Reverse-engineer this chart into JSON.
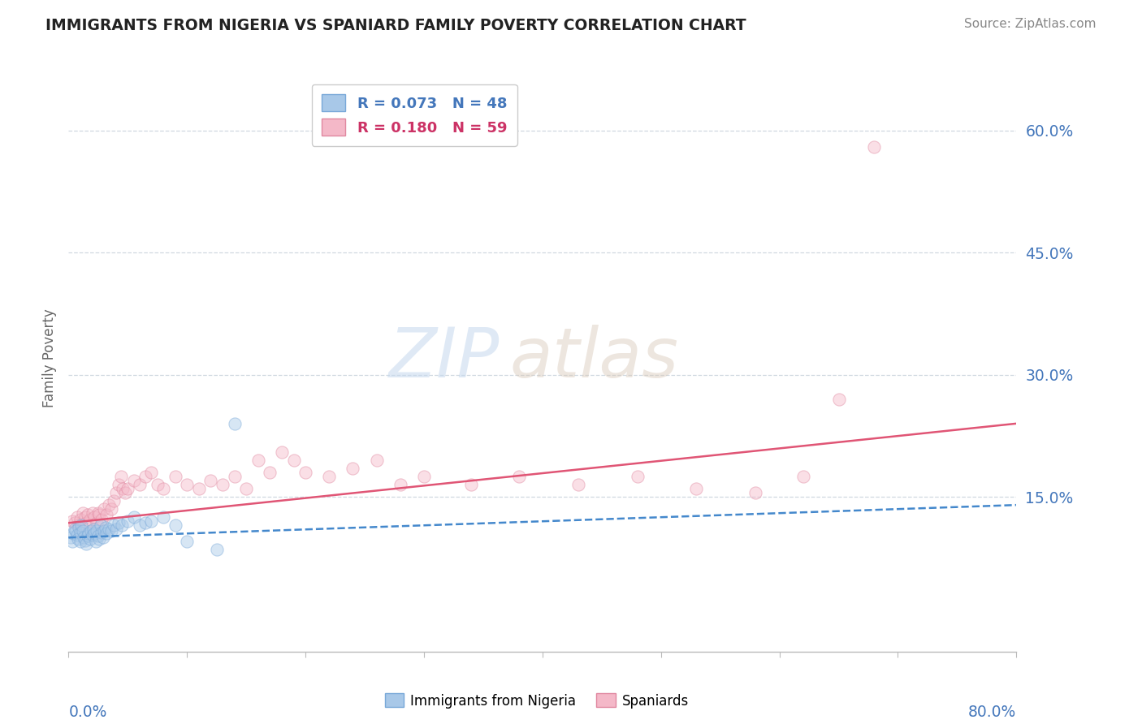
{
  "title": "IMMIGRANTS FROM NIGERIA VS SPANIARD FAMILY POVERTY CORRELATION CHART",
  "source": "Source: ZipAtlas.com",
  "ylabel": "Family Poverty",
  "xmin": 0.0,
  "xmax": 0.8,
  "ymin": -0.04,
  "ymax": 0.68,
  "ytick_vals": [
    0.15,
    0.3,
    0.45,
    0.6
  ],
  "ytick_labels": [
    "15.0%",
    "30.0%",
    "45.0%",
    "60.0%"
  ],
  "legend_entries": [
    {
      "label": "Immigrants from Nigeria",
      "R": 0.073,
      "N": 48,
      "color": "#a8c8e8",
      "line_color": "#5599cc",
      "line_style": "--"
    },
    {
      "label": "Spaniards",
      "R": 0.18,
      "N": 59,
      "color": "#f4b8c8",
      "line_color": "#e06080",
      "line_style": "-"
    }
  ],
  "watermark_text": "ZIP",
  "watermark_text2": "atlas",
  "background_color": "#ffffff",
  "grid_color": "#d0d8e0",
  "title_color": "#222222",
  "axis_label_color": "#4477bb",
  "blue_scatter_x": [
    0.002,
    0.003,
    0.004,
    0.005,
    0.006,
    0.007,
    0.008,
    0.009,
    0.01,
    0.01,
    0.011,
    0.012,
    0.013,
    0.014,
    0.015,
    0.016,
    0.017,
    0.018,
    0.019,
    0.02,
    0.021,
    0.022,
    0.023,
    0.024,
    0.025,
    0.026,
    0.027,
    0.028,
    0.029,
    0.03,
    0.031,
    0.032,
    0.034,
    0.036,
    0.038,
    0.04,
    0.042,
    0.045,
    0.05,
    0.055,
    0.06,
    0.065,
    0.07,
    0.08,
    0.09,
    0.1,
    0.125,
    0.14
  ],
  "blue_scatter_y": [
    0.1,
    0.095,
    0.105,
    0.11,
    0.108,
    0.103,
    0.098,
    0.112,
    0.106,
    0.095,
    0.115,
    0.108,
    0.1,
    0.096,
    0.092,
    0.102,
    0.105,
    0.098,
    0.108,
    0.103,
    0.11,
    0.105,
    0.095,
    0.108,
    0.102,
    0.098,
    0.115,
    0.106,
    0.1,
    0.108,
    0.112,
    0.105,
    0.11,
    0.108,
    0.115,
    0.11,
    0.118,
    0.115,
    0.12,
    0.125,
    0.115,
    0.118,
    0.12,
    0.125,
    0.115,
    0.095,
    0.085,
    0.24
  ],
  "pink_scatter_x": [
    0.003,
    0.005,
    0.007,
    0.009,
    0.01,
    0.012,
    0.014,
    0.015,
    0.016,
    0.018,
    0.02,
    0.022,
    0.024,
    0.025,
    0.026,
    0.028,
    0.03,
    0.032,
    0.034,
    0.036,
    0.038,
    0.04,
    0.042,
    0.044,
    0.046,
    0.048,
    0.05,
    0.055,
    0.06,
    0.065,
    0.07,
    0.075,
    0.08,
    0.09,
    0.1,
    0.11,
    0.12,
    0.13,
    0.14,
    0.15,
    0.16,
    0.17,
    0.18,
    0.19,
    0.2,
    0.22,
    0.24,
    0.26,
    0.28,
    0.3,
    0.34,
    0.38,
    0.43,
    0.48,
    0.53,
    0.58,
    0.62,
    0.65,
    0.68
  ],
  "pink_scatter_y": [
    0.12,
    0.118,
    0.125,
    0.115,
    0.122,
    0.13,
    0.125,
    0.118,
    0.128,
    0.122,
    0.13,
    0.125,
    0.118,
    0.13,
    0.128,
    0.122,
    0.135,
    0.128,
    0.14,
    0.135,
    0.145,
    0.155,
    0.165,
    0.175,
    0.16,
    0.155,
    0.16,
    0.17,
    0.165,
    0.175,
    0.18,
    0.165,
    0.16,
    0.175,
    0.165,
    0.16,
    0.17,
    0.165,
    0.175,
    0.16,
    0.195,
    0.18,
    0.205,
    0.195,
    0.18,
    0.175,
    0.185,
    0.195,
    0.165,
    0.175,
    0.165,
    0.175,
    0.165,
    0.175,
    0.16,
    0.155,
    0.175,
    0.27,
    0.58
  ],
  "blue_line_x": [
    0.0,
    0.8
  ],
  "blue_line_y": [
    0.1,
    0.14
  ],
  "pink_line_x": [
    0.0,
    0.8
  ],
  "pink_line_y": [
    0.118,
    0.24
  ],
  "scatter_alpha": 0.45,
  "scatter_size": 120
}
